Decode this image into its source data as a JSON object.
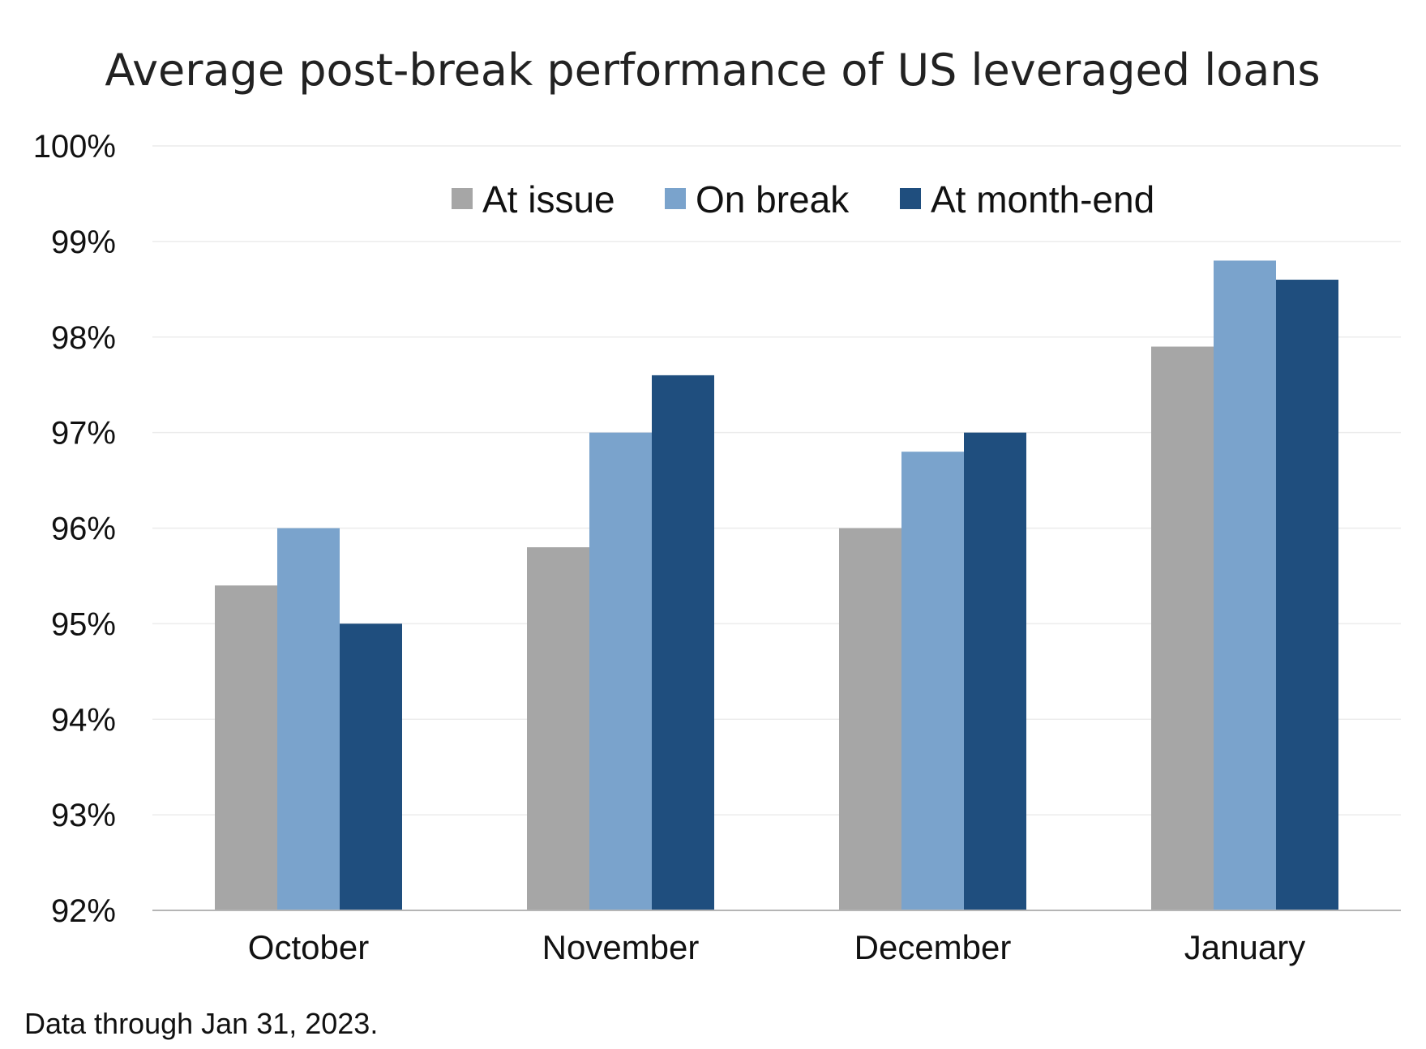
{
  "chart_data": {
    "type": "bar",
    "title": "Average post-break performance  of US leveraged loans",
    "categories": [
      "October",
      "November",
      "December",
      "January"
    ],
    "series": [
      {
        "name": "At issue",
        "color": "#a6a6a6",
        "values": [
          95.4,
          95.8,
          96.0,
          97.9
        ]
      },
      {
        "name": "On break",
        "color": "#7aa3cc",
        "values": [
          96.0,
          97.0,
          96.8,
          98.8
        ]
      },
      {
        "name": "At month-end",
        "color": "#1f4e7e",
        "values": [
          95.0,
          97.6,
          97.0,
          98.6
        ]
      }
    ],
    "ylim": [
      92,
      100
    ],
    "yticks": [
      92,
      93,
      94,
      95,
      96,
      97,
      98,
      99,
      100
    ],
    "ytick_suffix": "%",
    "grid": true,
    "legend_position": "top-center",
    "footnote": "Data through Jan 31, 2023."
  }
}
